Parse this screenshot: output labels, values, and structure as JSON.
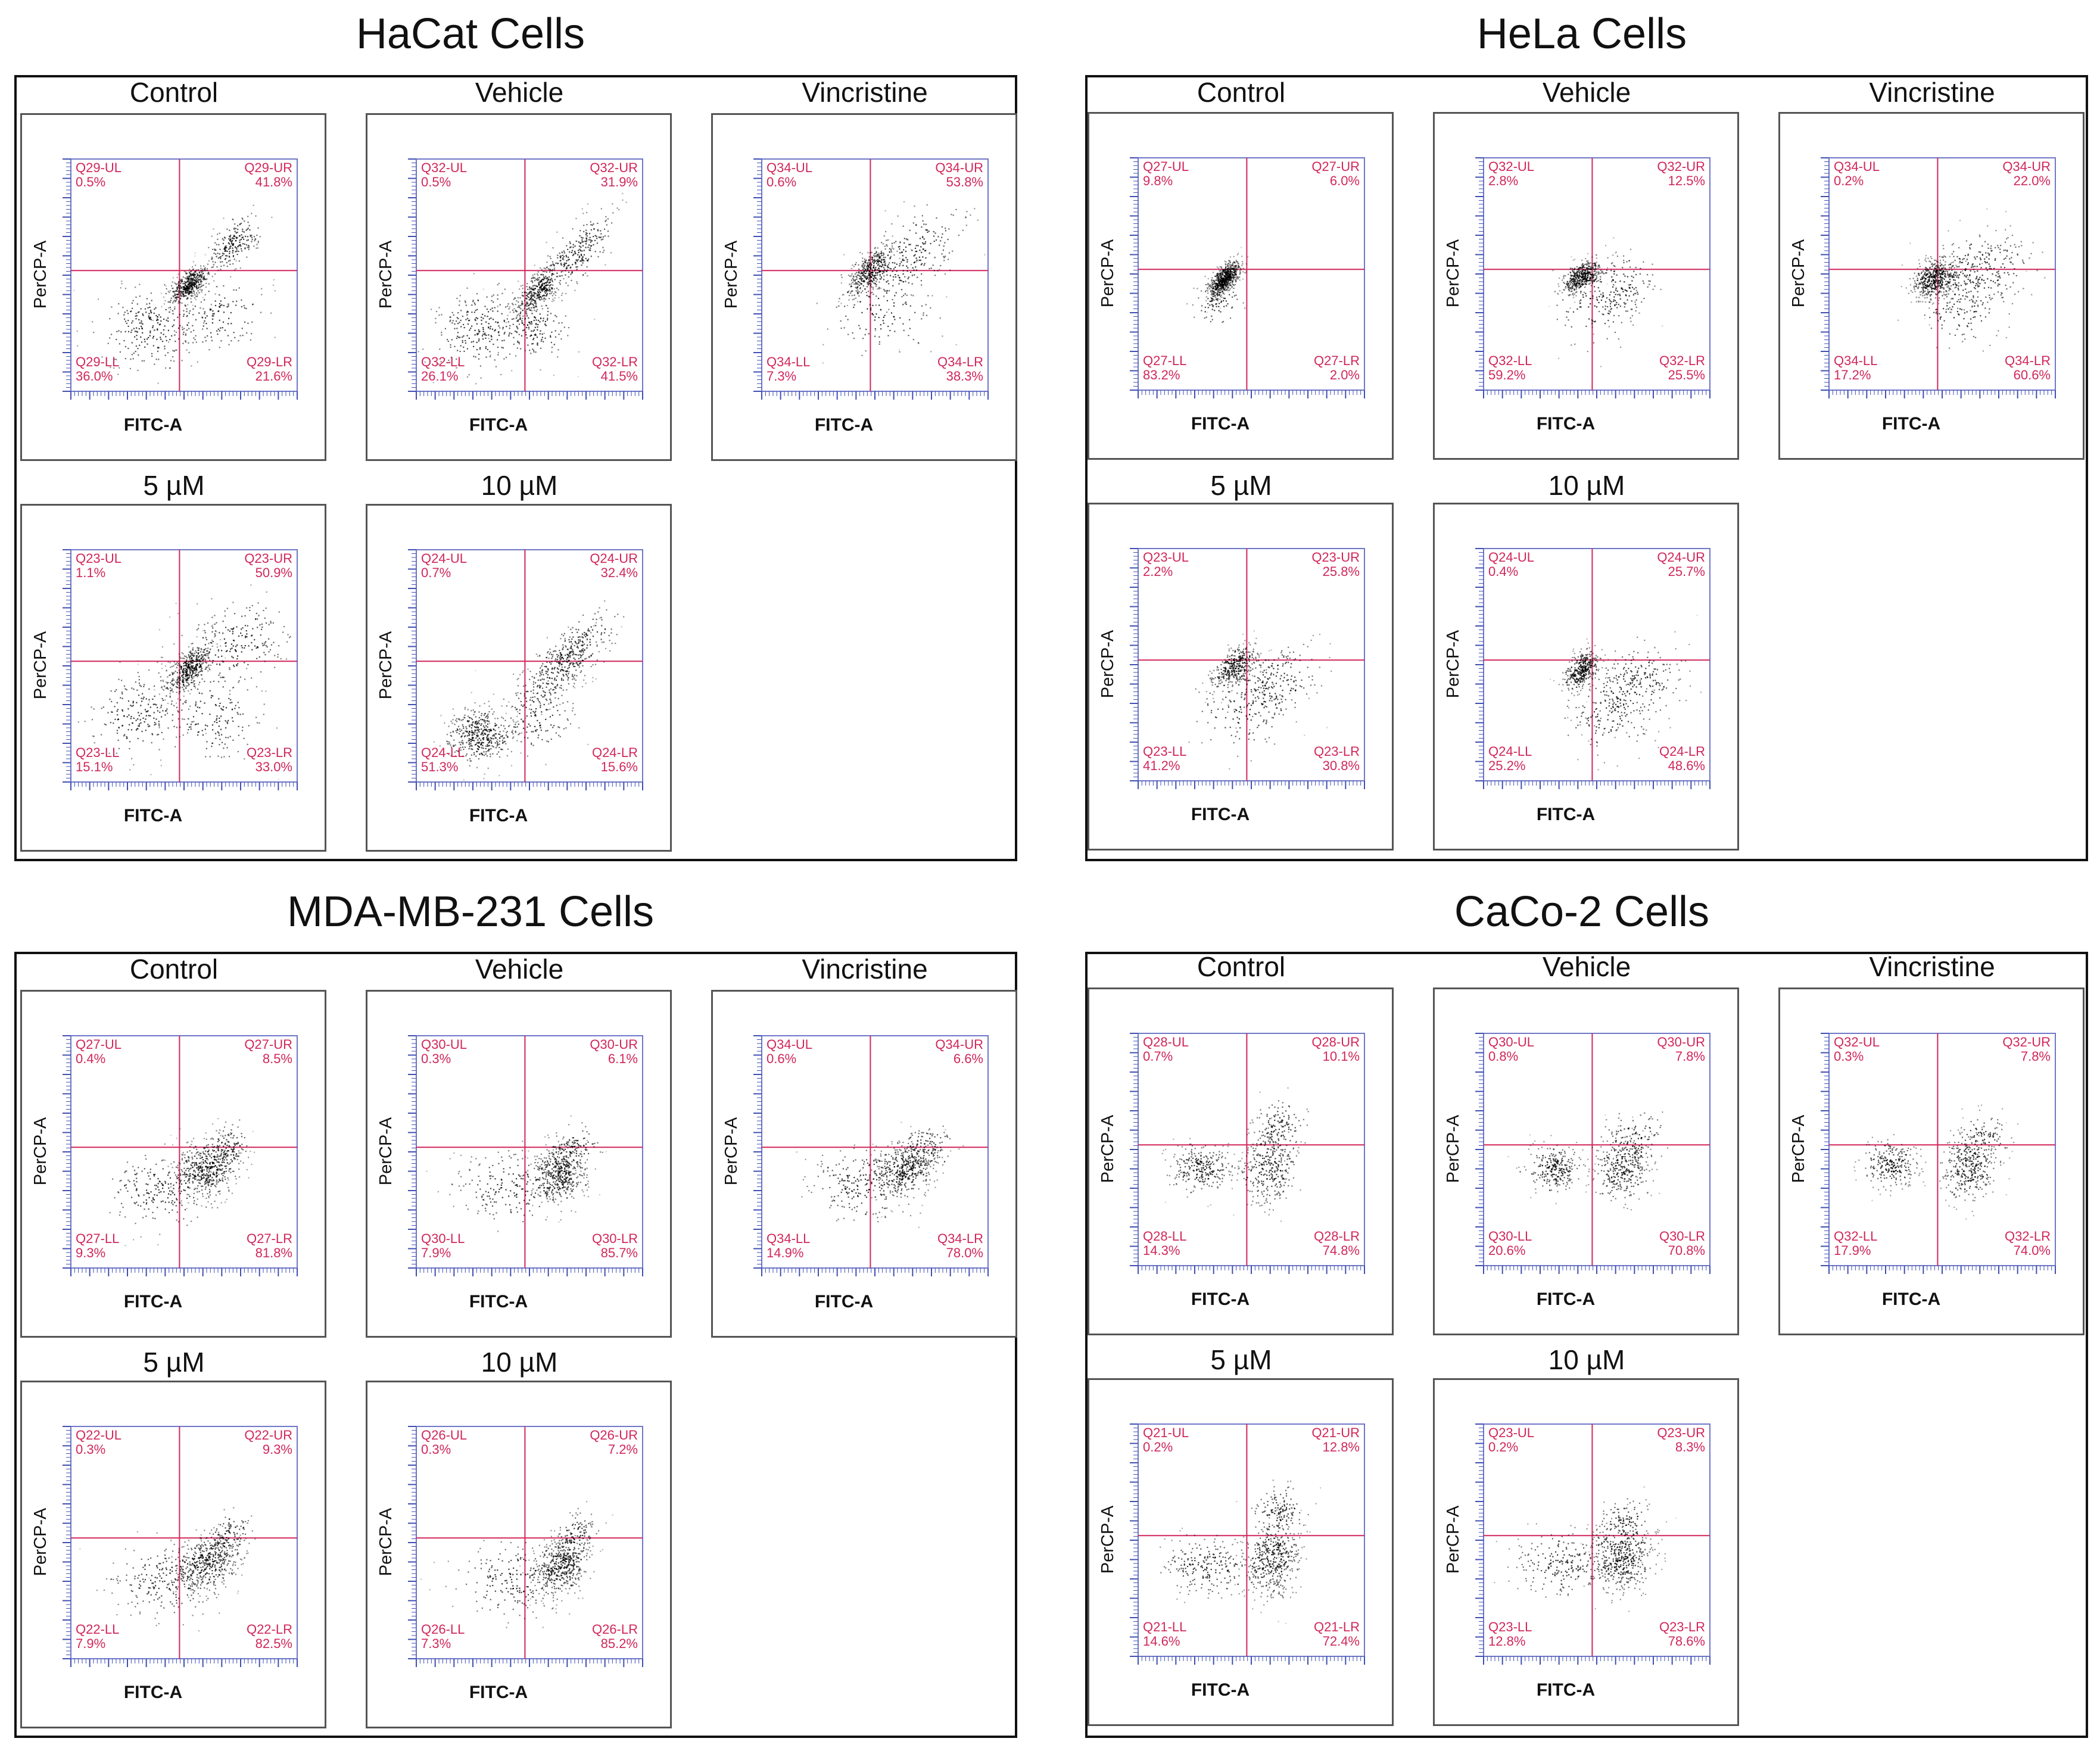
{
  "chart_data": [
    {
      "type": "scatter",
      "cell_line": "HaCat Cells",
      "xlabel": "FITC-A",
      "ylabel": "PerCP-A",
      "plots": [
        {
          "label": "Control",
          "gate": "Q29",
          "quadrants": {
            "UL": "0.5%",
            "UR": "41.8%",
            "LL": "36.0%",
            "LR": "21.6%"
          },
          "cluster_profile": "hacat-control"
        },
        {
          "label": "Vehicle",
          "gate": "Q32",
          "quadrants": {
            "UL": "0.5%",
            "UR": "31.9%",
            "LL": "26.1%",
            "LR": "41.5%"
          },
          "cluster_profile": "hacat-vehicle"
        },
        {
          "label": "Vincristine",
          "gate": "Q34",
          "quadrants": {
            "UL": "0.6%",
            "UR": "53.8%",
            "LL": "7.3%",
            "LR": "38.3%"
          },
          "cluster_profile": "hacat-vincristine"
        },
        {
          "label": "5 µM",
          "gate": "Q23",
          "quadrants": {
            "UL": "1.1%",
            "UR": "50.9%",
            "LL": "15.1%",
            "LR": "33.0%"
          },
          "cluster_profile": "hacat-5"
        },
        {
          "label": "10 µM",
          "gate": "Q24",
          "quadrants": {
            "UL": "0.7%",
            "UR": "32.4%",
            "LL": "51.3%",
            "LR": "15.6%"
          },
          "cluster_profile": "hacat-10"
        }
      ]
    },
    {
      "type": "scatter",
      "cell_line": "HeLa Cells",
      "xlabel": "FITC-A",
      "ylabel": "PerCP-A",
      "plots": [
        {
          "label": "Control",
          "gate": "Q27",
          "quadrants": {
            "UL": "9.8%",
            "UR": "6.0%",
            "LL": "83.2%",
            "LR": "2.0%"
          },
          "cluster_profile": "hela-control"
        },
        {
          "label": "Vehicle",
          "gate": "Q32",
          "quadrants": {
            "UL": "2.8%",
            "UR": "12.5%",
            "LL": "59.2%",
            "LR": "25.5%"
          },
          "cluster_profile": "hela-vehicle"
        },
        {
          "label": "Vincristine",
          "gate": "Q34",
          "quadrants": {
            "UL": "0.2%",
            "UR": "22.0%",
            "LL": "17.2%",
            "LR": "60.6%"
          },
          "cluster_profile": "hela-vincristine"
        },
        {
          "label": "5 µM",
          "gate": "Q23",
          "quadrants": {
            "UL": "2.2%",
            "UR": "25.8%",
            "LL": "41.2%",
            "LR": "30.8%"
          },
          "cluster_profile": "hela-5"
        },
        {
          "label": "10 µM",
          "gate": "Q24",
          "quadrants": {
            "UL": "0.4%",
            "UR": "25.7%",
            "LL": "25.2%",
            "LR": "48.6%"
          },
          "cluster_profile": "hela-10"
        }
      ]
    },
    {
      "type": "scatter",
      "cell_line": "MDA-MB-231 Cells",
      "xlabel": "FITC-A",
      "ylabel": "PerCP-A",
      "plots": [
        {
          "label": "Control",
          "gate": "Q27",
          "quadrants": {
            "UL": "0.4%",
            "UR": "8.5%",
            "LL": "9.3%",
            "LR": "81.8%"
          },
          "cluster_profile": "mda-control"
        },
        {
          "label": "Vehicle",
          "gate": "Q30",
          "quadrants": {
            "UL": "0.3%",
            "UR": "6.1%",
            "LL": "7.9%",
            "LR": "85.7%"
          },
          "cluster_profile": "mda-vehicle"
        },
        {
          "label": "Vincristine",
          "gate": "Q34",
          "quadrants": {
            "UL": "0.6%",
            "UR": "6.6%",
            "LL": "14.9%",
            "LR": "78.0%"
          },
          "cluster_profile": "mda-vincristine"
        },
        {
          "label": "5 µM",
          "gate": "Q22",
          "quadrants": {
            "UL": "0.3%",
            "UR": "9.3%",
            "LL": "7.9%",
            "LR": "82.5%"
          },
          "cluster_profile": "mda-5"
        },
        {
          "label": "10 µM",
          "gate": "Q26",
          "quadrants": {
            "UL": "0.3%",
            "UR": "7.2%",
            "LL": "7.3%",
            "LR": "85.2%"
          },
          "cluster_profile": "mda-10"
        }
      ]
    },
    {
      "type": "scatter",
      "cell_line": "CaCo-2 Cells",
      "xlabel": "FITC-A",
      "ylabel": "PerCP-A",
      "plots": [
        {
          "label": "Control",
          "gate": "Q28",
          "quadrants": {
            "UL": "0.7%",
            "UR": "10.1%",
            "LL": "14.3%",
            "LR": "74.8%"
          },
          "cluster_profile": "caco-control"
        },
        {
          "label": "Vehicle",
          "gate": "Q30",
          "quadrants": {
            "UL": "0.8%",
            "UR": "7.8%",
            "LL": "20.6%",
            "LR": "70.8%"
          },
          "cluster_profile": "caco-vehicle"
        },
        {
          "label": "Vincristine",
          "gate": "Q32",
          "quadrants": {
            "UL": "0.3%",
            "UR": "7.8%",
            "LL": "17.9%",
            "LR": "74.0%"
          },
          "cluster_profile": "caco-vincristine"
        },
        {
          "label": "5 µM",
          "gate": "Q21",
          "quadrants": {
            "UL": "0.2%",
            "UR": "12.8%",
            "LL": "14.6%",
            "LR": "72.4%"
          },
          "cluster_profile": "caco-5"
        },
        {
          "label": "10 µM",
          "gate": "Q23",
          "quadrants": {
            "UL": "0.2%",
            "UR": "8.3%",
            "LL": "12.8%",
            "LR": "78.6%"
          },
          "cluster_profile": "caco-10"
        }
      ]
    }
  ]
}
